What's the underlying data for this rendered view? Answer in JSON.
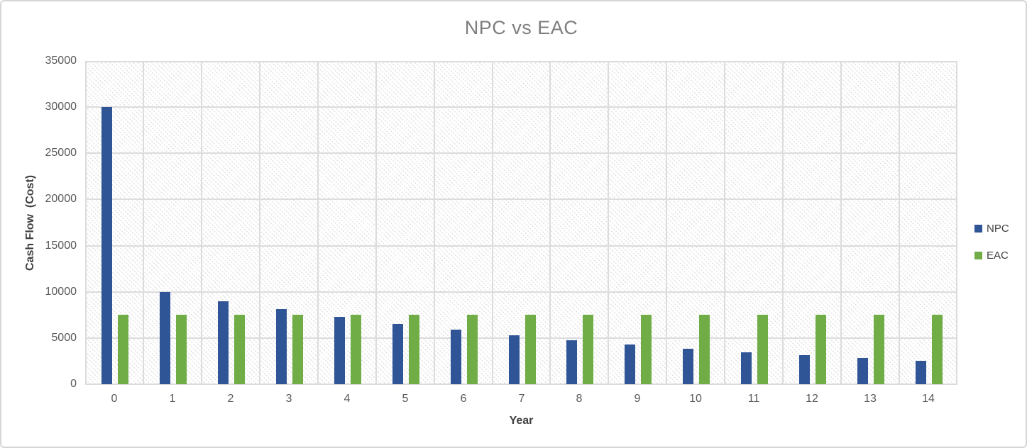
{
  "chart_data": {
    "type": "bar",
    "title": "NPC vs EAC",
    "xlabel": "Year",
    "ylabel": "Cash Flow  (Cost)",
    "categories": [
      "0",
      "1",
      "2",
      "3",
      "4",
      "5",
      "6",
      "7",
      "8",
      "9",
      "10",
      "11",
      "12",
      "13",
      "14"
    ],
    "series": [
      {
        "name": "NPC",
        "color": "#2F5597",
        "values": [
          30000,
          10000,
          9000,
          8100,
          7290,
          6561,
          5905,
          5314,
          4783,
          4305,
          3874,
          3487,
          3138,
          2824,
          2542
        ]
      },
      {
        "name": "EAC",
        "color": "#70AD47",
        "values": [
          7500,
          7500,
          7500,
          7500,
          7500,
          7500,
          7500,
          7500,
          7500,
          7500,
          7500,
          7500,
          7500,
          7500,
          7500
        ]
      }
    ],
    "ylim": [
      0,
      35000
    ],
    "ytick_interval": 5000,
    "yticks": [
      "0",
      "5000",
      "10000",
      "15000",
      "20000",
      "25000",
      "30000",
      "35000"
    ],
    "grid": "horizontal-and-vertical",
    "legend_position": "right",
    "plot_background": "diagonal-hatch",
    "title_color": "#7E7E7E",
    "tick_label_color": "#595959",
    "axis_title_color": "#3F3F3F",
    "gridline_color": "#DCDCDC"
  }
}
